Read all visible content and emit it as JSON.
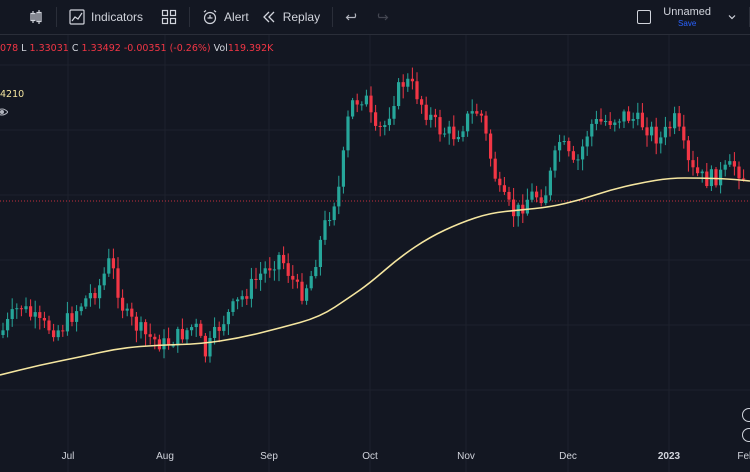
{
  "toolbar": {
    "indicators_label": "Indicators",
    "alert_label": "Alert",
    "replay_label": "Replay",
    "layout_name": "Unnamed",
    "save_label": "Save"
  },
  "legend": {
    "open_partial": "078",
    "l_label": "L",
    "low": "1.33031",
    "c_label": "C",
    "close": "1.33492",
    "change": "-0.00351",
    "change_pct": "(-0.26%)",
    "vol_label": "Vol",
    "volume": "119.392K",
    "ma_value_partial": "4210"
  },
  "colors": {
    "background": "#131722",
    "up": "#26a69a",
    "down": "#f23645",
    "ma": "#f5e6a0",
    "price_line": "#f23645"
  },
  "xaxis": {
    "labels": [
      "Jul",
      "Aug",
      "Sep",
      "Oct",
      "Nov",
      "Dec",
      "2023",
      "Feb"
    ]
  }
}
